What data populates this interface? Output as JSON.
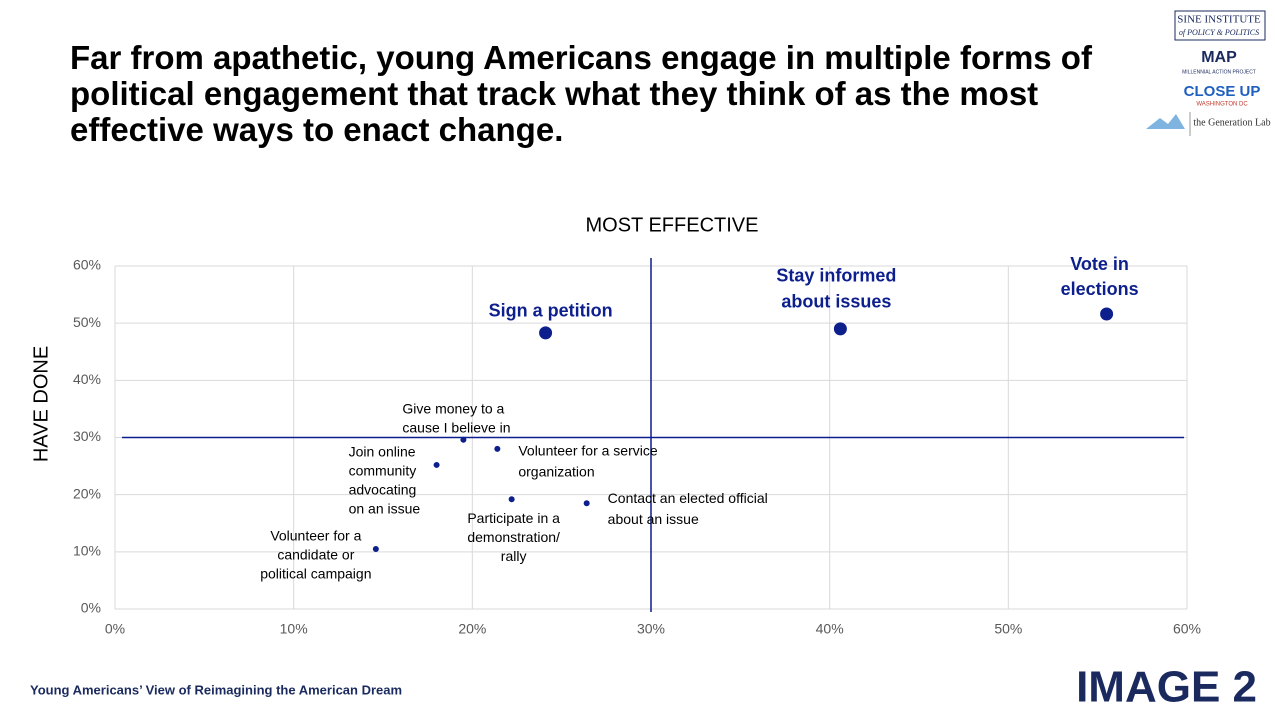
{
  "title": "Far from apathetic, young Americans engage in multiple forms of political engagement that track what they think of as the most effective ways to enact change.",
  "logos": [
    "SINE INSTITUTE",
    "of POLICY & POLITICS",
    "MAP",
    "MILLENNIAL ACTION PROJECT",
    "CLOSE UP",
    "WASHINGTON DC",
    "the Generation Lab"
  ],
  "footer": "Young Americans’ View of Reimagining the American Dream",
  "image_label": "IMAGE 2",
  "chart_data": {
    "type": "scatter",
    "x_label": "MOST EFFECTIVE",
    "y_label": "HAVE DONE",
    "xlim": [
      0,
      60
    ],
    "ylim": [
      0,
      60
    ],
    "xticks": [
      {
        "value": 0,
        "label": "0%"
      },
      {
        "value": 10,
        "label": "10%"
      },
      {
        "value": 20,
        "label": "20%"
      },
      {
        "value": 30,
        "label": "30%"
      },
      {
        "value": 40,
        "label": "40%"
      },
      {
        "value": 50,
        "label": "50%"
      },
      {
        "value": 60,
        "label": "60%"
      }
    ],
    "yticks": [
      {
        "value": 0,
        "label": "0%"
      },
      {
        "value": 10,
        "label": "10%"
      },
      {
        "value": 20,
        "label": "20%"
      },
      {
        "value": 30,
        "label": "30%"
      },
      {
        "value": 40,
        "label": "40%"
      },
      {
        "value": 50,
        "label": "50%"
      },
      {
        "value": 60,
        "label": "60%"
      }
    ],
    "grid": true,
    "color": "#0d1f8c",
    "reference_lines": {
      "x": 30,
      "y": 30
    },
    "x": [
      55.5,
      40.6,
      24.1,
      19.5,
      21.4,
      18.0,
      22.2,
      26.4,
      14.6
    ],
    "values": [
      51.6,
      49.0,
      48.3,
      29.6,
      28.0,
      25.2,
      19.2,
      18.5,
      10.5
    ],
    "emphasis": [
      true,
      true,
      true,
      false,
      false,
      false,
      false,
      false,
      false
    ],
    "labels": [
      [
        "Vote in",
        "elections"
      ],
      [
        "Stay informed",
        "about issues"
      ],
      [
        "Sign a petition"
      ],
      [
        "Give money to a",
        "cause I believe in"
      ],
      [
        "Volunteer for a service",
        "organization"
      ],
      [
        "Join online",
        "community",
        "advocating",
        "on an issue"
      ],
      [
        "Participate in a",
        "demonstration/",
        "rally"
      ],
      [
        "Contact an elected official",
        "about an issue"
      ],
      [
        "Volunteer for a",
        "candidate or",
        "political campaign"
      ]
    ]
  }
}
